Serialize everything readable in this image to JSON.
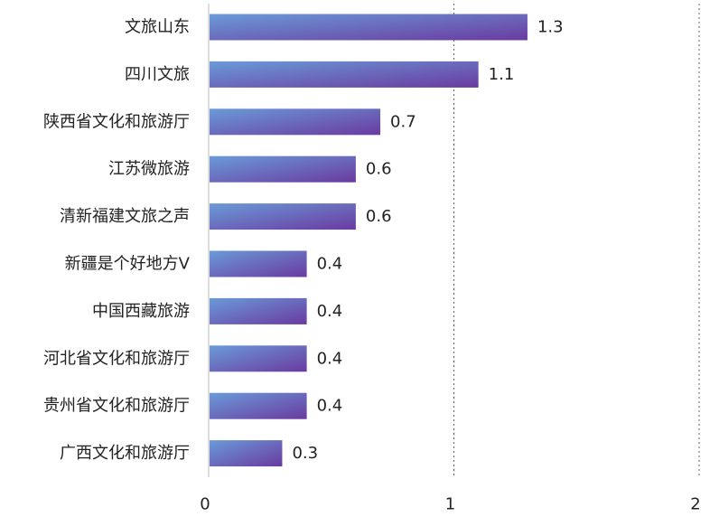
{
  "chart_data": {
    "type": "bar",
    "orientation": "horizontal",
    "categories": [
      "文旅山东",
      "四川文旅",
      "陕西省文化和旅游厅",
      "江苏微旅游",
      "清新福建文旅之声",
      "新疆是个好地方V",
      "中国西藏旅游",
      "河北省文化和旅游厅",
      "贵州省文化和旅游厅",
      "广西文化和旅游厅"
    ],
    "values": [
      1.3,
      1.1,
      0.7,
      0.6,
      0.6,
      0.4,
      0.4,
      0.4,
      0.4,
      0.3
    ],
    "value_labels": [
      "1.3",
      "1.1",
      "0.7",
      "0.6",
      "0.6",
      "0.4",
      "0.4",
      "0.4",
      "0.4",
      "0.3"
    ],
    "x_ticks": [
      "0",
      "1",
      "2"
    ],
    "xlim": [
      0,
      2
    ],
    "grid": "dotted vertical at 1 and 2",
    "legend": "none",
    "colors": {
      "bar_start": "#6a9bd8",
      "bar_end": "#6a3aa0",
      "text": "#222222",
      "axis": "#bbbbbb",
      "grid": "#666666"
    }
  }
}
